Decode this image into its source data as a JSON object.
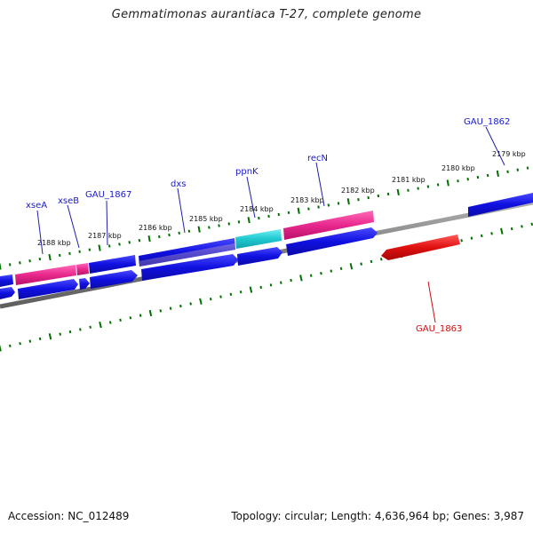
{
  "header": {
    "title": "Gemmatimonas aurantiaca T-27, complete genome"
  },
  "footer": {
    "accession": "Accession: NC_012489",
    "summary": "Topology: circular; Length: 4,636,964 bp; Genes: 3,987"
  },
  "map": {
    "kbp_labels": [
      "2179 kbp",
      "2180 kbp",
      "2181 kbp",
      "2182 kbp",
      "2183 kbp",
      "2184 kbp",
      "2185 kbp",
      "2186 kbp",
      "2187 kbp",
      "2188 kbp"
    ],
    "gene_labels": [
      {
        "name": "GAU_1862",
        "strand": "forward"
      },
      {
        "name": "recN",
        "strand": "forward"
      },
      {
        "name": "ppnK",
        "strand": "forward"
      },
      {
        "name": "dxs",
        "strand": "forward"
      },
      {
        "name": "GAU_1867",
        "strand": "forward"
      },
      {
        "name": "xseB",
        "strand": "forward"
      },
      {
        "name": "xseA",
        "strand": "forward"
      },
      {
        "name": "GAU_1863",
        "strand": "reverse"
      }
    ],
    "colors": {
      "forward_cds": "#1010e0",
      "pink_feature": "#e8288c",
      "cyan_feature": "#20c8d0",
      "reverse_cds": "#e01010",
      "backbone": "#808080",
      "tick": "#007000",
      "forward_label": "#1a1acc",
      "reverse_label": "#cc1111"
    }
  }
}
